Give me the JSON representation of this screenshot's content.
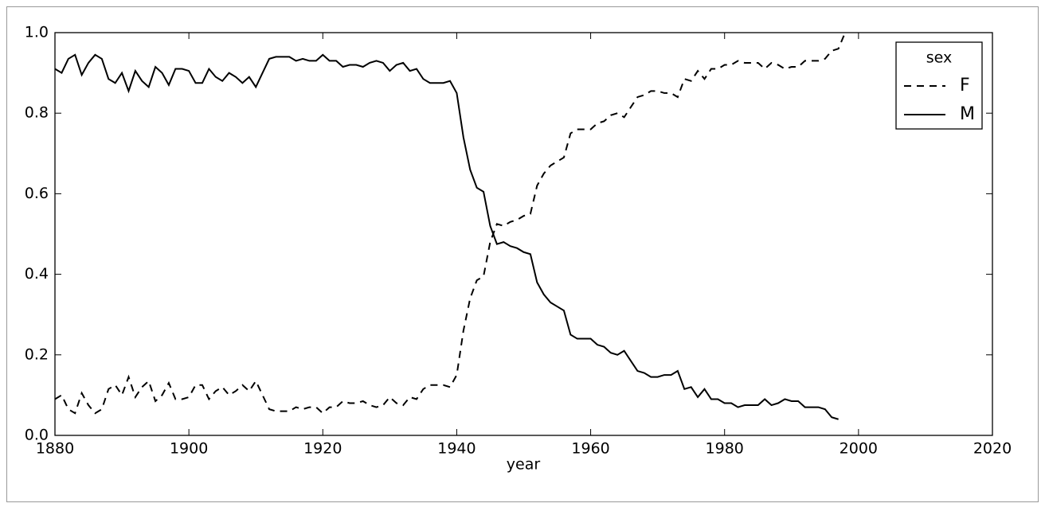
{
  "chart_data": {
    "type": "line",
    "xlabel": "year",
    "x": [
      1880,
      1881,
      1882,
      1883,
      1884,
      1885,
      1886,
      1887,
      1888,
      1889,
      1890,
      1891,
      1892,
      1893,
      1894,
      1895,
      1896,
      1897,
      1898,
      1899,
      1900,
      1901,
      1902,
      1903,
      1904,
      1905,
      1906,
      1907,
      1908,
      1909,
      1910,
      1911,
      1912,
      1913,
      1914,
      1915,
      1916,
      1917,
      1918,
      1919,
      1920,
      1921,
      1922,
      1923,
      1924,
      1925,
      1926,
      1927,
      1928,
      1929,
      1930,
      1931,
      1932,
      1933,
      1934,
      1935,
      1936,
      1937,
      1938,
      1939,
      1940,
      1941,
      1942,
      1943,
      1944,
      1945,
      1946,
      1947,
      1948,
      1949,
      1950,
      1951,
      1952,
      1953,
      1954,
      1955,
      1956,
      1957,
      1958,
      1959,
      1960,
      1961,
      1962,
      1963,
      1964,
      1965,
      1966,
      1967,
      1968,
      1969,
      1970,
      1971,
      1972,
      1973,
      1974,
      1975,
      1976,
      1977,
      1978,
      1979,
      1980,
      1981,
      1982,
      1983,
      1984,
      1985,
      1986,
      1987,
      1988,
      1989,
      1990,
      1991,
      1992,
      1993,
      1994,
      1995,
      1996,
      1997,
      1998
    ],
    "series": [
      {
        "name": "F",
        "color": "#000000",
        "dash": "dashed",
        "values": [
          0.09,
          0.1,
          0.065,
          0.055,
          0.105,
          0.075,
          0.055,
          0.065,
          0.115,
          0.125,
          0.1,
          0.145,
          0.095,
          0.12,
          0.135,
          0.085,
          0.1,
          0.13,
          0.09,
          0.09,
          0.095,
          0.125,
          0.125,
          0.09,
          0.11,
          0.12,
          0.1,
          0.11,
          0.125,
          0.11,
          0.135,
          0.1,
          0.065,
          0.06,
          0.06,
          0.06,
          0.07,
          0.065,
          0.07,
          0.07,
          0.055,
          0.07,
          0.07,
          0.085,
          0.08,
          0.08,
          0.085,
          0.075,
          0.07,
          0.075,
          0.095,
          0.08,
          0.075,
          0.095,
          0.09,
          0.115,
          0.125,
          0.125,
          0.125,
          0.12,
          0.15,
          0.26,
          0.34,
          0.385,
          0.395,
          0.48,
          0.525,
          0.52,
          0.53,
          0.535,
          0.545,
          0.55,
          0.62,
          0.65,
          0.67,
          0.68,
          0.69,
          0.75,
          0.76,
          0.76,
          0.76,
          0.775,
          0.78,
          0.795,
          0.8,
          0.79,
          0.815,
          0.84,
          0.845,
          0.855,
          0.855,
          0.85,
          0.85,
          0.84,
          0.885,
          0.88,
          0.905,
          0.885,
          0.91,
          0.91,
          0.92,
          0.92,
          0.93,
          0.925,
          0.925,
          0.925,
          0.91,
          0.925,
          0.92,
          0.91,
          0.915,
          0.915,
          0.93,
          0.93,
          0.93,
          0.935,
          0.955,
          0.96,
          1.0
        ]
      },
      {
        "name": "M",
        "color": "#000000",
        "dash": "solid",
        "values": [
          0.91,
          0.9,
          0.935,
          0.945,
          0.895,
          0.925,
          0.945,
          0.935,
          0.885,
          0.875,
          0.9,
          0.855,
          0.905,
          0.88,
          0.865,
          0.915,
          0.9,
          0.87,
          0.91,
          0.91,
          0.905,
          0.875,
          0.875,
          0.91,
          0.89,
          0.88,
          0.9,
          0.89,
          0.875,
          0.89,
          0.865,
          0.9,
          0.935,
          0.94,
          0.94,
          0.94,
          0.93,
          0.935,
          0.93,
          0.93,
          0.945,
          0.93,
          0.93,
          0.915,
          0.92,
          0.92,
          0.915,
          0.925,
          0.93,
          0.925,
          0.905,
          0.92,
          0.925,
          0.905,
          0.91,
          0.885,
          0.875,
          0.875,
          0.875,
          0.88,
          0.85,
          0.74,
          0.66,
          0.615,
          0.605,
          0.52,
          0.475,
          0.48,
          0.47,
          0.465,
          0.455,
          0.45,
          0.38,
          0.35,
          0.33,
          0.32,
          0.31,
          0.25,
          0.24,
          0.24,
          0.24,
          0.225,
          0.22,
          0.205,
          0.2,
          0.21,
          0.185,
          0.16,
          0.155,
          0.145,
          0.145,
          0.15,
          0.15,
          0.16,
          0.115,
          0.12,
          0.095,
          0.115,
          0.09,
          0.09,
          0.08,
          0.08,
          0.07,
          0.075,
          0.075,
          0.075,
          0.09,
          0.075,
          0.08,
          0.09,
          0.085,
          0.085,
          0.07,
          0.07,
          0.07,
          0.065,
          0.045,
          0.04,
          null
        ]
      }
    ],
    "xlim": [
      1880,
      2020
    ],
    "xticks": [
      1880,
      1900,
      1920,
      1940,
      1960,
      1980,
      2000,
      2020
    ],
    "ylim": [
      0,
      1
    ],
    "yticks": [
      {
        "value": 0,
        "label": "0.0"
      },
      0.2,
      0.4,
      0.6,
      0.8,
      {
        "value": 1,
        "label": "1.0"
      }
    ],
    "legend_title": "sex",
    "legend": "upper right",
    "grid": false
  }
}
